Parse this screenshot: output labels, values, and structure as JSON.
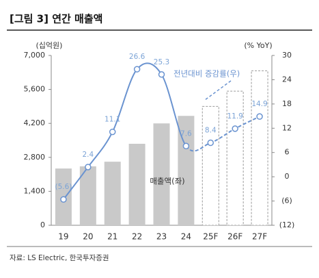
{
  "title": "[그림 3] 연간 매출액",
  "source": "자료: LS Electric, 한국투자증권",
  "chart_data": {
    "type": "bar-line",
    "y_unit_label": "(십억원)",
    "y2_unit_label": "(% YoY)",
    "categories": [
      "19",
      "20",
      "21",
      "22",
      "23",
      "24",
      "25F",
      "26F",
      "27F"
    ],
    "dashed_from": "25F",
    "ylim": [
      0,
      7000
    ],
    "yticks": [
      0,
      {
        "value": 1400,
        "label": "1,400"
      },
      {
        "value": 2800,
        "label": "2,800"
      },
      {
        "value": 4200,
        "label": "4,200"
      },
      {
        "value": 5600,
        "label": "5,600"
      },
      {
        "value": 7000,
        "label": "7,000"
      }
    ],
    "y2lim": [
      -12,
      30
    ],
    "y2ticks": [
      {
        "value": -12,
        "label": "(12)"
      },
      {
        "value": -6,
        "label": "(6)"
      },
      0,
      6,
      12,
      18,
      24,
      30
    ],
    "series": [
      {
        "name": "매출액(좌)",
        "type": "bar",
        "color": "#c9c9c9",
        "values": [
          2340,
          2430,
          2620,
          3360,
          4200,
          4510,
          4900,
          5530,
          6370
        ]
      },
      {
        "name": "전년대비 증감률(우)",
        "type": "line",
        "axis": "y2",
        "color": "#6a93d0",
        "values": [
          -5.6,
          2.4,
          11.1,
          26.6,
          25.3,
          7.6,
          8.4,
          11.9,
          14.9
        ],
        "value_labels": [
          "(5.6)",
          "2.4",
          "11.1",
          "26.6",
          "25.3",
          "7.6",
          "8.4",
          "11.9",
          "14.9"
        ]
      }
    ]
  }
}
